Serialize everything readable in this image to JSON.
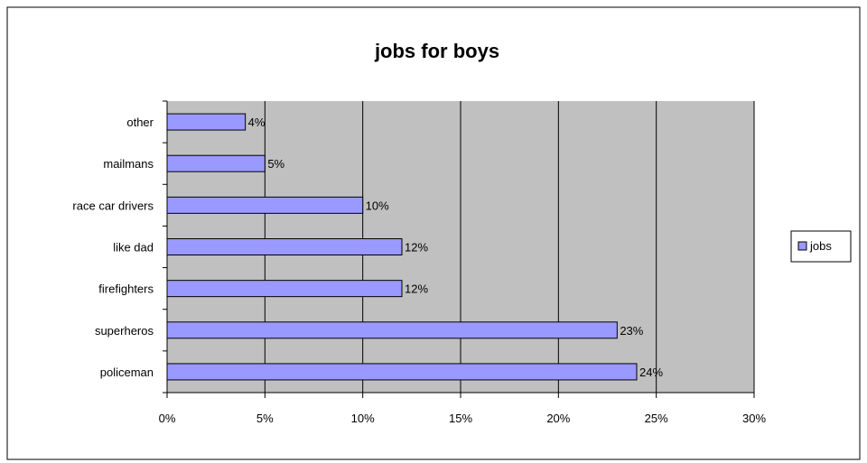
{
  "chart_data": {
    "type": "bar",
    "orientation": "horizontal",
    "title": "jobs for boys",
    "xlabel": "",
    "ylabel": "",
    "categories": [
      "other",
      "mailmans",
      "race car drivers",
      "like dad",
      "firefighters",
      "superheros",
      "policeman"
    ],
    "series": [
      {
        "name": "jobs",
        "values": [
          4,
          5,
          10,
          12,
          12,
          23,
          24
        ],
        "labels": [
          "4%",
          "5%",
          "10%",
          "12%",
          "12%",
          "23%",
          "24%"
        ]
      }
    ],
    "xlim": [
      0,
      30
    ],
    "x_ticks": [
      "0%",
      "5%",
      "10%",
      "15%",
      "20%",
      "25%",
      "30%"
    ],
    "grid": true,
    "legend_position": "right",
    "colors": {
      "bar": "#9999ff",
      "plot_bg": "#c0c0c0",
      "grid": "#000000"
    }
  }
}
